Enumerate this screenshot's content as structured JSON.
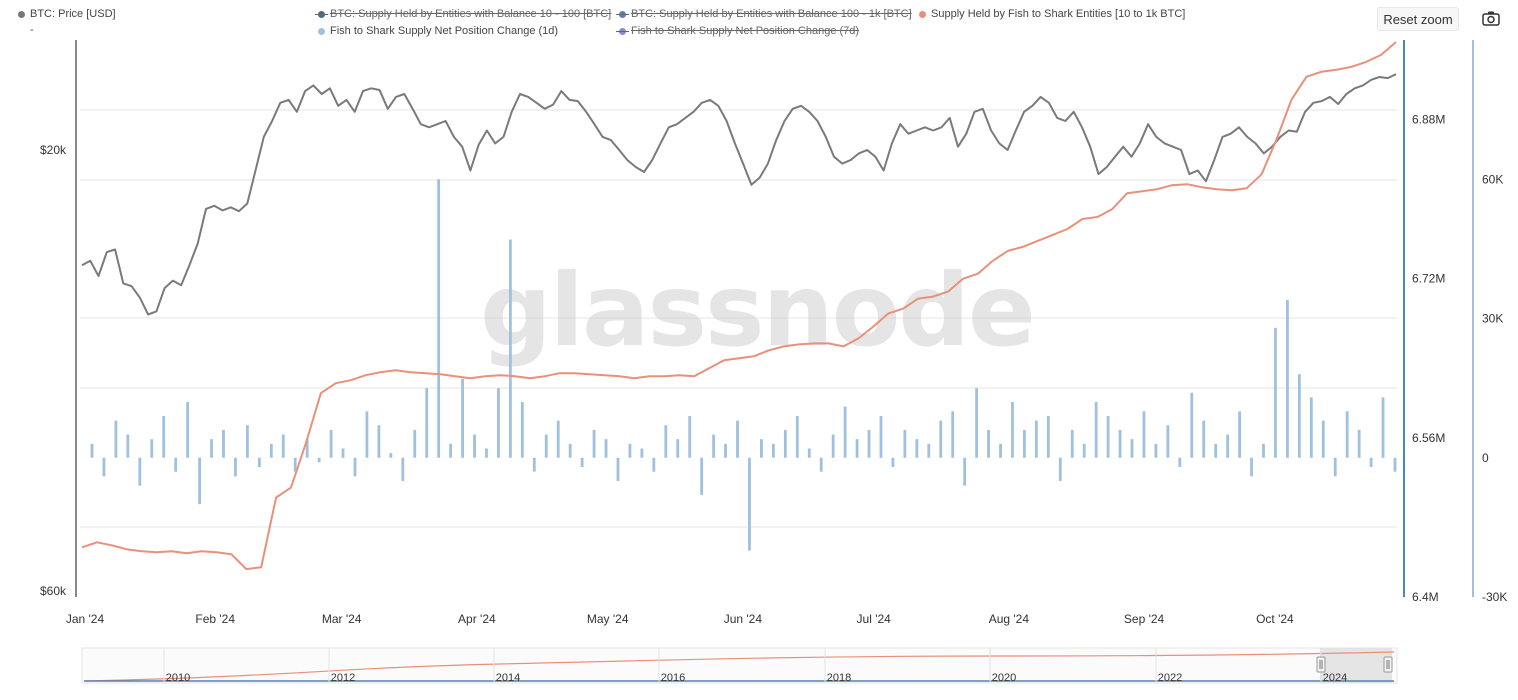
{
  "toolbar": {
    "reset_zoom_label": "Reset zoom",
    "camera_icon": "camera-icon"
  },
  "legend": {
    "btc": {
      "label": "BTC: Price [USD]",
      "sub": "-",
      "color": "#777777"
    },
    "items": [
      {
        "label": "BTC: Supply Held by Entities with Balance 10 - 100 [BTC]",
        "color": "#4a6a8a",
        "hidden": true
      },
      {
        "label": "BTC: Supply Held by Entities with Balance 100 - 1k [BTC]",
        "color": "#5a7fb5",
        "hidden": true
      },
      {
        "label": "Supply Held by Fish to Shark Entities [10 to 1k BTC]",
        "color": "#e8907a",
        "hidden": false
      },
      {
        "label": "Fish to Shark Supply Net Position Change (1d)",
        "color": "#9fc1de",
        "hidden": false
      },
      {
        "label": "Fish to Shark Supply Net Position Change (7d)",
        "color": "#8a8ad0",
        "hidden": true
      }
    ]
  },
  "watermark": "glassnode",
  "colors": {
    "price": "#7a7a7a",
    "supply": "#e8907a",
    "netchange_1d": "#9fc1de",
    "grid": "#e6e6e6",
    "right_axis_1": "#4a86b8",
    "right_axis_2": "#9fc1de"
  },
  "chart_data": {
    "type": "line",
    "x_range": [
      "2024-01-01",
      "2024-10-29"
    ],
    "x_ticks": [
      "Jan '24",
      "Feb '24",
      "Mar '24",
      "Apr '24",
      "May '24",
      "Jun '24",
      "Jul '24",
      "Aug '24",
      "Sep '24",
      "Oct '24"
    ],
    "y_left": {
      "label": "BTC: Price [USD]",
      "scale": "log",
      "ticks": [
        "$20k",
        "$60k"
      ]
    },
    "y_right_1": {
      "ticks": [
        "6.88M",
        "6.72M",
        "6.56M",
        "6.4M"
      ],
      "range": [
        6400000,
        6960000
      ]
    },
    "y_right_2": {
      "ticks": [
        "60K",
        "30K",
        "0",
        "-30K"
      ],
      "range": [
        -30000,
        90000
      ]
    },
    "series": [
      {
        "name": "BTC: Price [USD]",
        "axis": "left",
        "values": [
          45000,
          45500,
          43800,
          46500,
          46800,
          43000,
          42700,
          41500,
          39800,
          40100,
          42500,
          43300,
          42800,
          45000,
          47500,
          51800,
          52200,
          51600,
          52000,
          51500,
          52500,
          57000,
          62000,
          64500,
          67500,
          68000,
          66000,
          69500,
          70500,
          69000,
          70000,
          67000,
          68000,
          66000,
          69500,
          70000,
          69700,
          66500,
          68500,
          69000,
          66500,
          64000,
          63500,
          64000,
          64500,
          62000,
          60500,
          57000,
          60800,
          63000,
          61000,
          62000,
          66000,
          69000,
          68500,
          67500,
          66500,
          67200,
          69500,
          68000,
          67800,
          66000,
          64000,
          62000,
          61500,
          60000,
          58500,
          57500,
          56800,
          58500,
          61000,
          63500,
          64000,
          65000,
          66000,
          67500,
          68000,
          67000,
          64500,
          61000,
          58000,
          55000,
          56000,
          58000,
          61500,
          64500,
          66500,
          67000,
          66000,
          64500,
          62000,
          59000,
          58000,
          58500,
          59500,
          60000,
          59000,
          57000,
          61000,
          64000,
          62500,
          63000,
          63500,
          63000,
          63500,
          65000,
          60500,
          62500,
          66000,
          66500,
          63000,
          61000,
          60000,
          63000,
          66000,
          67000,
          68500,
          67500,
          65000,
          64500,
          66000,
          63500,
          60500,
          56500,
          57500,
          59000,
          60500,
          59000,
          61000,
          64000,
          62000,
          61000,
          60500,
          60000,
          56500,
          57000,
          55500,
          58500,
          62000,
          62500,
          63500,
          62000,
          61000,
          59500,
          60500,
          62000,
          63000,
          62800,
          66000,
          67500,
          67800,
          68500,
          67300,
          69000,
          70000,
          70500,
          71500,
          72000,
          71800,
          72500
        ]
      },
      {
        "name": "Supply Held by Fish to Shark Entities [10 to 1k BTC]",
        "axis": "right_1",
        "values": [
          6450000,
          6455000,
          6452000,
          6448000,
          6446000,
          6445000,
          6446000,
          6444000,
          6446000,
          6445000,
          6443000,
          6428000,
          6430000,
          6500000,
          6510000,
          6555000,
          6605000,
          6615000,
          6618000,
          6623000,
          6626000,
          6628000,
          6626000,
          6625000,
          6624000,
          6622000,
          6620000,
          6622000,
          6623000,
          6622000,
          6620000,
          6622000,
          6625000,
          6625000,
          6624000,
          6623000,
          6622000,
          6620000,
          6622000,
          6622000,
          6623000,
          6622000,
          6630000,
          6638000,
          6640000,
          6642000,
          6648000,
          6652000,
          6654000,
          6655000,
          6655000,
          6652000,
          6660000,
          6672000,
          6685000,
          6690000,
          6700000,
          6702000,
          6707000,
          6720000,
          6725000,
          6738000,
          6748000,
          6752000,
          6758000,
          6764000,
          6770000,
          6780000,
          6782000,
          6790000,
          6806000,
          6808000,
          6810000,
          6814000,
          6815000,
          6812000,
          6810000,
          6809000,
          6811000,
          6825000,
          6860000,
          6900000,
          6923000,
          6928000,
          6930000,
          6933000,
          6938000,
          6945000,
          6958000
        ]
      },
      {
        "name": "Fish to Shark Supply Net Position Change (1d)",
        "axis": "right_2",
        "type": "bar",
        "values": [
          3000,
          -4000,
          8000,
          5000,
          -6000,
          4000,
          9000,
          -3000,
          12000,
          -10000,
          4000,
          6000,
          -4000,
          7000,
          -2000,
          3000,
          5000,
          -3000,
          4000,
          -1000,
          6000,
          2000,
          -4000,
          10000,
          7000,
          1000,
          -5000,
          6000,
          15000,
          60000,
          3000,
          17000,
          5000,
          2000,
          15000,
          47000,
          12000,
          -3000,
          5000,
          8000,
          3000,
          -2000,
          6000,
          4000,
          -5000,
          3000,
          2000,
          -3000,
          7000,
          4000,
          9000,
          -8000,
          5000,
          3000,
          8000,
          -20000,
          4000,
          3000,
          6000,
          9000,
          2000,
          -3000,
          5000,
          11000,
          4000,
          6000,
          9000,
          -2000,
          6000,
          4000,
          3000,
          8000,
          10000,
          -6000,
          15000,
          6000,
          3000,
          12000,
          6000,
          8000,
          9000,
          -5000,
          6000,
          3000,
          12000,
          9000,
          6000,
          4000,
          10000,
          3000,
          7000,
          -2000,
          14000,
          8000,
          3000,
          5000,
          10000,
          -4000,
          3000,
          28000,
          34000,
          18000,
          13000,
          8000,
          -4000,
          10000,
          6000,
          -2000,
          13000,
          -3000
        ]
      }
    ]
  },
  "navigator": {
    "ticks": [
      "2010",
      "2012",
      "2014",
      "2016",
      "2018",
      "2020",
      "2022",
      "2024"
    ]
  }
}
